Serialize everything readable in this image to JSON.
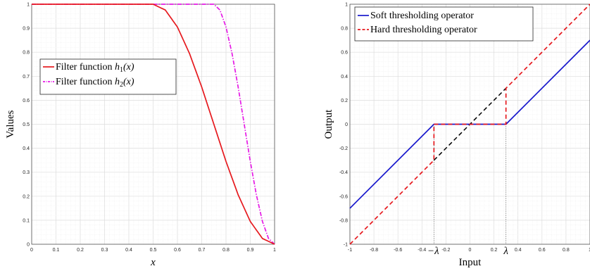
{
  "chart_data": [
    {
      "type": "line",
      "xlabel": "x",
      "ylabel": "Values",
      "xlim": [
        0,
        1
      ],
      "ylim": [
        0,
        1
      ],
      "xticks": [
        "0",
        "0.1",
        "0.2",
        "0.3",
        "0.4",
        "0.5",
        "0.6",
        "0.7",
        "0.8",
        "0.9",
        "1"
      ],
      "yticks": [
        "0",
        "0.1",
        "0.2",
        "0.3",
        "0.4",
        "0.5",
        "0.6",
        "0.7",
        "0.8",
        "0.9",
        "1"
      ],
      "grid": true,
      "legend_position": "middle-left",
      "series": [
        {
          "name": "Filter function h1(x)",
          "legend_main": "Filter function ",
          "legend_sym": "h",
          "legend_sub": "1",
          "legend_arg": "(x)",
          "color": "#e6191e",
          "style": "solid",
          "x": [
            0,
            0.5,
            0.55,
            0.6,
            0.65,
            0.7,
            0.75,
            0.8,
            0.85,
            0.9,
            0.95,
            1
          ],
          "y": [
            1,
            1,
            0.976,
            0.905,
            0.794,
            0.655,
            0.5,
            0.345,
            0.206,
            0.095,
            0.024,
            0
          ]
        },
        {
          "name": "Filter function h2(x)",
          "legend_main": "Filter function ",
          "legend_sym": "h",
          "legend_sub": "2",
          "legend_arg": "(x)",
          "color": "#e619e6",
          "style": "dashdot",
          "x": [
            0,
            0.75,
            0.775,
            0.8,
            0.825,
            0.85,
            0.875,
            0.9,
            0.925,
            0.95,
            0.975,
            1
          ],
          "y": [
            1,
            1,
            0.976,
            0.905,
            0.794,
            0.655,
            0.5,
            0.345,
            0.206,
            0.095,
            0.024,
            0
          ]
        }
      ]
    },
    {
      "type": "line",
      "xlabel": "Input",
      "ylabel": "Output",
      "xlim": [
        -1,
        1
      ],
      "ylim": [
        -1,
        1
      ],
      "xticks": [
        "-1",
        "-0.8",
        "-0.6",
        "-0.4",
        "-0.2",
        "0",
        "0.2",
        "0.4",
        "0.6",
        "0.8",
        "1"
      ],
      "yticks": [
        "-1",
        "-0.8",
        "-0.6",
        "-0.4",
        "-0.2",
        "0",
        "0.2",
        "0.4",
        "0.6",
        "0.8",
        "1"
      ],
      "grid": true,
      "legend_position": "top-left",
      "threshold": 0.3,
      "threshold_labels": [
        "−λ",
        "λ"
      ],
      "series": [
        {
          "name": "Soft thresholding operator",
          "color": "#1919cc",
          "style": "solid",
          "x": [
            -1,
            -0.3,
            0.3,
            1
          ],
          "y": [
            -0.7,
            0,
            0,
            0.7
          ]
        },
        {
          "name": "Hard thresholding operator",
          "color": "#e6191e",
          "style": "dashed",
          "x": [
            -1,
            -0.3,
            -0.3,
            0.3,
            0.3,
            1
          ],
          "y": [
            -1,
            -0.3,
            0,
            0,
            0.3,
            1
          ]
        }
      ],
      "reference_line": {
        "color": "#000000",
        "style": "dashed",
        "x": [
          -0.3,
          0.3
        ],
        "y": [
          -0.3,
          0.3
        ]
      }
    }
  ]
}
